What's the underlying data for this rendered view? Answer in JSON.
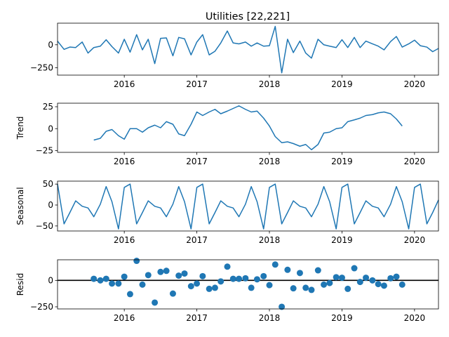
{
  "title": "Utilities  [22,221]",
  "colors": {
    "series": "#1f77b4",
    "axis": "#000000",
    "zero_line": "#000000"
  },
  "chart_data": [
    {
      "type": "line",
      "panel": "observed",
      "ylabel": "",
      "xlim": [
        2015.08,
        2020.33
      ],
      "ylim": [
        -330,
        235
      ],
      "yticks": [
        0,
        -250
      ],
      "ytick_labels": [
        "0",
        "−250"
      ],
      "xticks": [
        2016,
        2017,
        2018,
        2019,
        2020
      ],
      "xtick_labels": [
        "2016",
        "2017",
        "2018",
        "2019",
        "2020"
      ],
      "x": [
        2015.08,
        2015.17,
        2015.25,
        2015.33,
        2015.42,
        2015.5,
        2015.58,
        2015.67,
        2015.75,
        2015.83,
        2015.92,
        2016.0,
        2016.08,
        2016.17,
        2016.25,
        2016.33,
        2016.42,
        2016.5,
        2016.58,
        2016.67,
        2016.75,
        2016.83,
        2016.92,
        2017.0,
        2017.08,
        2017.17,
        2017.25,
        2017.33,
        2017.42,
        2017.5,
        2017.58,
        2017.67,
        2017.75,
        2017.83,
        2017.92,
        2018.0,
        2018.08,
        2018.17,
        2018.25,
        2018.33,
        2018.42,
        2018.5,
        2018.58,
        2018.67,
        2018.75,
        2018.83,
        2018.92,
        2019.0,
        2019.08,
        2019.17,
        2019.25,
        2019.33,
        2019.42,
        2019.5,
        2019.58,
        2019.67,
        2019.75,
        2019.83,
        2019.92,
        2020.0,
        2020.08,
        2020.17,
        2020.25,
        2020.33
      ],
      "y": [
        40,
        -50,
        -25,
        -30,
        30,
        -90,
        -30,
        -15,
        55,
        -20,
        -90,
        60,
        -80,
        110,
        -55,
        60,
        -205,
        70,
        75,
        -120,
        80,
        65,
        -110,
        30,
        110,
        -110,
        -70,
        20,
        150,
        20,
        10,
        30,
        -15,
        20,
        -15,
        -10,
        200,
        -305,
        60,
        -85,
        40,
        -90,
        -145,
        60,
        0,
        -15,
        -30,
        55,
        -30,
        80,
        -30,
        40,
        10,
        -15,
        -55,
        35,
        90,
        -25,
        10,
        50,
        -10,
        -25,
        -75,
        -40
      ]
    },
    {
      "type": "line",
      "panel": "trend",
      "ylabel": "Trend",
      "xlim": [
        2015.08,
        2020.33
      ],
      "ylim": [
        -27,
        29
      ],
      "yticks": [
        25,
        0,
        -25
      ],
      "ytick_labels": [
        "25",
        "0",
        "−25"
      ],
      "xticks": [
        2016,
        2017,
        2018,
        2019,
        2020
      ],
      "xtick_labels": [
        "2016",
        "2017",
        "2018",
        "2019",
        "2020"
      ],
      "x": [
        2015.58,
        2015.67,
        2015.75,
        2015.83,
        2015.92,
        2016.0,
        2016.08,
        2016.17,
        2016.25,
        2016.33,
        2016.42,
        2016.5,
        2016.58,
        2016.67,
        2016.75,
        2016.83,
        2016.92,
        2017.0,
        2017.08,
        2017.17,
        2017.25,
        2017.33,
        2017.42,
        2017.5,
        2017.58,
        2017.67,
        2017.75,
        2017.83,
        2017.92,
        2018.0,
        2018.08,
        2018.17,
        2018.25,
        2018.33,
        2018.42,
        2018.5,
        2018.58,
        2018.67,
        2018.75,
        2018.83,
        2018.92,
        2019.0,
        2019.08,
        2019.17,
        2019.25,
        2019.33,
        2019.42,
        2019.5,
        2019.58,
        2019.67,
        2019.75,
        2019.83
      ],
      "y": [
        -13,
        -11,
        -3,
        -1,
        -8,
        -12,
        0,
        0,
        -4,
        1,
        4,
        1,
        8,
        5,
        -6,
        -8,
        5,
        19,
        15,
        19,
        22,
        17,
        20,
        23,
        26,
        22,
        19,
        20,
        12,
        3,
        -9,
        -16,
        -15,
        -17,
        -20,
        -18,
        -24,
        -18,
        -5,
        -4,
        0,
        1,
        8,
        10,
        12,
        15,
        16,
        18,
        19,
        17,
        11,
        3
      ]
    },
    {
      "type": "line",
      "panel": "seasonal",
      "ylabel": "Seasonal",
      "xlim": [
        2015.08,
        2020.33
      ],
      "ylim": [
        -62,
        57
      ],
      "yticks": [
        50,
        0,
        -50
      ],
      "ytick_labels": [
        "50",
        "0",
        "−50"
      ],
      "xticks": [
        2016,
        2017,
        2018,
        2019,
        2020
      ],
      "xtick_labels": [
        "2016",
        "2017",
        "2018",
        "2019",
        "2020"
      ],
      "x": [
        2015.08,
        2015.17,
        2015.25,
        2015.33,
        2015.42,
        2015.5,
        2015.58,
        2015.67,
        2015.75,
        2015.83,
        2015.92,
        2016.0,
        2016.08,
        2016.17,
        2016.25,
        2016.33,
        2016.42,
        2016.5,
        2016.58,
        2016.67,
        2016.75,
        2016.83,
        2016.92,
        2017.0,
        2017.08,
        2017.17,
        2017.25,
        2017.33,
        2017.42,
        2017.5,
        2017.58,
        2017.67,
        2017.75,
        2017.83,
        2017.92,
        2018.0,
        2018.08,
        2018.17,
        2018.25,
        2018.33,
        2018.42,
        2018.5,
        2018.58,
        2018.67,
        2018.75,
        2018.83,
        2018.92,
        2019.0,
        2019.08,
        2019.17,
        2019.25,
        2019.33,
        2019.42,
        2019.5,
        2019.58,
        2019.67,
        2019.75,
        2019.83,
        2019.92,
        2020.0,
        2020.08,
        2020.17,
        2020.25,
        2020.33
      ],
      "y": [
        50,
        -45,
        -18,
        10,
        -3,
        -7,
        -28,
        2,
        44,
        8,
        -57,
        42,
        50,
        -45,
        -18,
        10,
        -3,
        -7,
        -28,
        2,
        44,
        8,
        -57,
        42,
        50,
        -45,
        -18,
        10,
        -3,
        -7,
        -28,
        2,
        44,
        8,
        -57,
        42,
        50,
        -45,
        -18,
        10,
        -3,
        -7,
        -28,
        2,
        44,
        8,
        -57,
        42,
        50,
        -45,
        -18,
        10,
        -3,
        -7,
        -28,
        2,
        44,
        8,
        -57,
        42,
        50,
        -45,
        -18,
        12
      ]
    },
    {
      "type": "scatter",
      "panel": "resid",
      "ylabel": "Resid",
      "xlim": [
        2015.08,
        2020.33
      ],
      "ylim": [
        -270,
        195
      ],
      "yticks": [
        0,
        -250
      ],
      "ytick_labels": [
        "0",
        "−250"
      ],
      "xticks": [
        2016,
        2017,
        2018,
        2019,
        2020
      ],
      "xtick_labels": [
        "2016",
        "2017",
        "2018",
        "2019",
        "2020"
      ],
      "zero_line": true,
      "x": [
        2015.58,
        2015.67,
        2015.75,
        2015.83,
        2015.92,
        2016.0,
        2016.08,
        2016.17,
        2016.25,
        2016.33,
        2016.42,
        2016.5,
        2016.58,
        2016.67,
        2016.75,
        2016.83,
        2016.92,
        2017.0,
        2017.08,
        2017.17,
        2017.25,
        2017.33,
        2017.42,
        2017.5,
        2017.58,
        2017.67,
        2017.75,
        2017.83,
        2017.92,
        2018.0,
        2018.08,
        2018.17,
        2018.25,
        2018.33,
        2018.42,
        2018.5,
        2018.58,
        2018.67,
        2018.75,
        2018.83,
        2018.92,
        2019.0,
        2019.08,
        2019.17,
        2019.25,
        2019.33,
        2019.42,
        2019.5,
        2019.58,
        2019.67,
        2019.75,
        2019.83
      ],
      "y": [
        15,
        0,
        15,
        -30,
        -30,
        35,
        -130,
        185,
        -40,
        50,
        -210,
        80,
        90,
        -125,
        45,
        65,
        -55,
        -30,
        40,
        -80,
        -70,
        -10,
        130,
        15,
        15,
        20,
        -70,
        10,
        40,
        -45,
        150,
        -250,
        100,
        -75,
        70,
        -70,
        -90,
        95,
        -40,
        -25,
        30,
        25,
        -80,
        115,
        -15,
        25,
        0,
        -35,
        -50,
        20,
        35,
        -40
      ]
    }
  ]
}
